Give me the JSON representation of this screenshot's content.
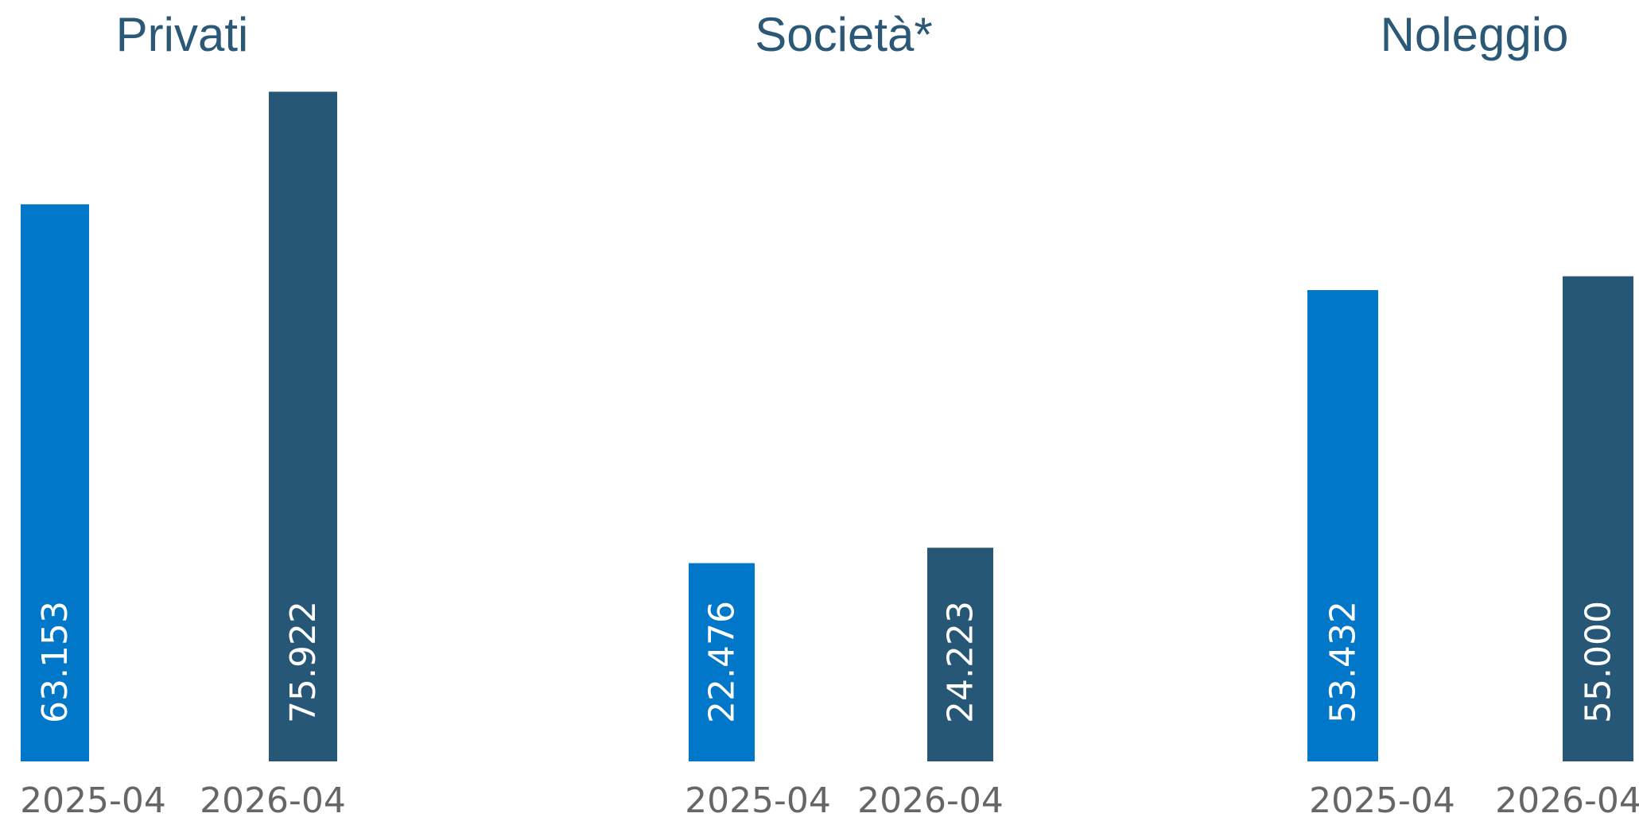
{
  "chart_data": {
    "type": "bar",
    "panels": [
      {
        "title": "Privati",
        "categories": [
          "2025-04",
          "2026-04"
        ],
        "values": [
          63153,
          75922
        ],
        "value_labels": [
          "63.153",
          "75.922"
        ]
      },
      {
        "title": "Società*",
        "categories": [
          "2025-04",
          "2026-04"
        ],
        "values": [
          22476,
          24223
        ],
        "value_labels": [
          "22.476",
          "24.223"
        ]
      },
      {
        "title": "Noleggio",
        "categories": [
          "2025-04",
          "2026-04"
        ],
        "values": [
          53432,
          55000
        ],
        "value_labels": [
          "53.432",
          "55.000"
        ]
      }
    ],
    "colors": [
      "#0077C8",
      "#275776"
    ],
    "value_label_color": "#ffffff",
    "title_color": "#2B5876",
    "tick_label_color": "#666666",
    "grid": false,
    "legend": "none"
  }
}
